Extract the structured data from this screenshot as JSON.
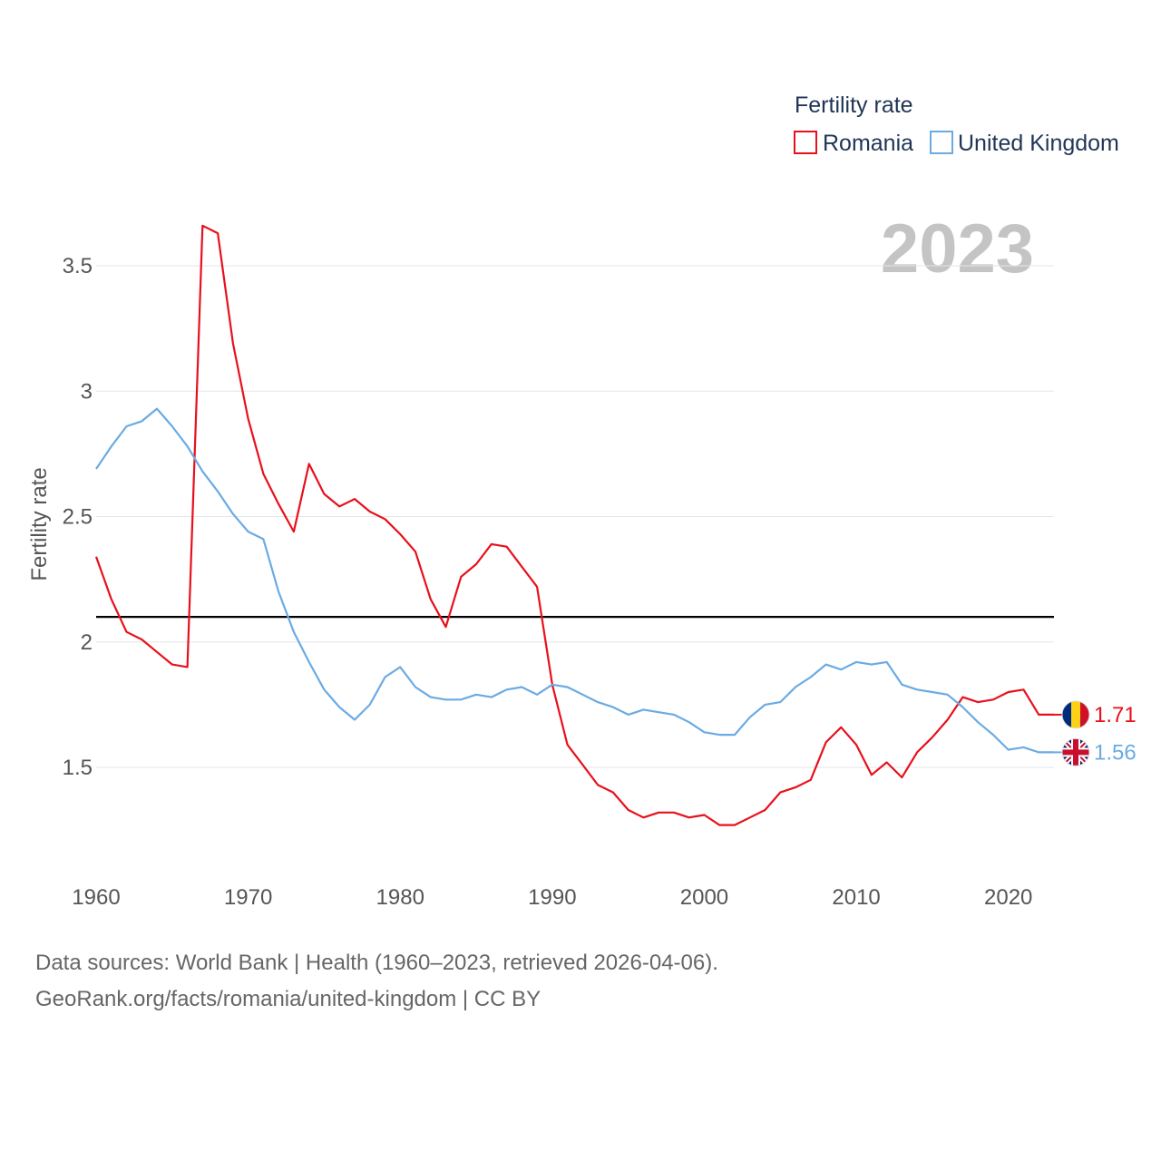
{
  "chart_data": {
    "type": "line",
    "title": "Fertility rate",
    "ylabel": "Fertility rate",
    "xlabel": "",
    "year_label": "2023",
    "xlim": [
      1960,
      2023
    ],
    "ylim": [
      1.1,
      3.7
    ],
    "x_ticks": [
      1960,
      1970,
      1980,
      1990,
      2000,
      2010,
      2020
    ],
    "y_ticks": [
      1.5,
      2,
      2.5,
      3,
      3.5
    ],
    "y_tick_labels": [
      "1.5",
      "2",
      "2.5",
      "3",
      "3.5"
    ],
    "x_tick_labels": [
      "1960",
      "1970",
      "1980",
      "1990",
      "2000",
      "2010",
      "2020"
    ],
    "reference_line": {
      "value": 2.1,
      "color": "#000000"
    },
    "grid": true,
    "legend_position": "top-right",
    "x": [
      1960,
      1961,
      1962,
      1963,
      1964,
      1965,
      1966,
      1967,
      1968,
      1969,
      1970,
      1971,
      1972,
      1973,
      1974,
      1975,
      1976,
      1977,
      1978,
      1979,
      1980,
      1981,
      1982,
      1983,
      1984,
      1985,
      1986,
      1987,
      1988,
      1989,
      1990,
      1991,
      1992,
      1993,
      1994,
      1995,
      1996,
      1997,
      1998,
      1999,
      2000,
      2001,
      2002,
      2003,
      2004,
      2005,
      2006,
      2007,
      2008,
      2009,
      2010,
      2011,
      2012,
      2013,
      2014,
      2015,
      2016,
      2017,
      2018,
      2019,
      2020,
      2021,
      2022,
      2023
    ],
    "series": [
      {
        "name": "Romania",
        "color": "#e8101c",
        "end_label": "1.71",
        "flag": "romania-flag-icon",
        "values": [
          2.34,
          2.17,
          2.04,
          2.01,
          1.96,
          1.91,
          1.9,
          3.66,
          3.63,
          3.19,
          2.89,
          2.67,
          2.55,
          2.44,
          2.71,
          2.59,
          2.54,
          2.57,
          2.52,
          2.49,
          2.43,
          2.36,
          2.17,
          2.06,
          2.26,
          2.31,
          2.39,
          2.38,
          2.3,
          2.22,
          1.83,
          1.59,
          1.51,
          1.43,
          1.4,
          1.33,
          1.3,
          1.32,
          1.32,
          1.3,
          1.31,
          1.27,
          1.27,
          1.3,
          1.33,
          1.4,
          1.42,
          1.45,
          1.6,
          1.66,
          1.59,
          1.47,
          1.52,
          1.46,
          1.56,
          1.62,
          1.69,
          1.78,
          1.76,
          1.77,
          1.8,
          1.81,
          1.71,
          1.71
        ]
      },
      {
        "name": "United Kingdom",
        "color": "#6aabe3",
        "end_label": "1.56",
        "flag": "united-kingdom-flag-icon",
        "values": [
          2.69,
          2.78,
          2.86,
          2.88,
          2.93,
          2.86,
          2.78,
          2.68,
          2.6,
          2.51,
          2.44,
          2.41,
          2.2,
          2.04,
          1.92,
          1.81,
          1.74,
          1.69,
          1.75,
          1.86,
          1.9,
          1.82,
          1.78,
          1.77,
          1.77,
          1.79,
          1.78,
          1.81,
          1.82,
          1.79,
          1.83,
          1.82,
          1.79,
          1.76,
          1.74,
          1.71,
          1.73,
          1.72,
          1.71,
          1.68,
          1.64,
          1.63,
          1.63,
          1.7,
          1.75,
          1.76,
          1.82,
          1.86,
          1.91,
          1.89,
          1.92,
          1.91,
          1.92,
          1.83,
          1.81,
          1.8,
          1.79,
          1.74,
          1.68,
          1.63,
          1.57,
          1.58,
          1.56,
          1.56
        ]
      }
    ]
  },
  "footer": {
    "line1": "Data sources: World Bank | Health (1960–2023, retrieved 2026-04-06).",
    "line2": "GeoRank.org/facts/romania/united-kingdom | CC BY"
  }
}
